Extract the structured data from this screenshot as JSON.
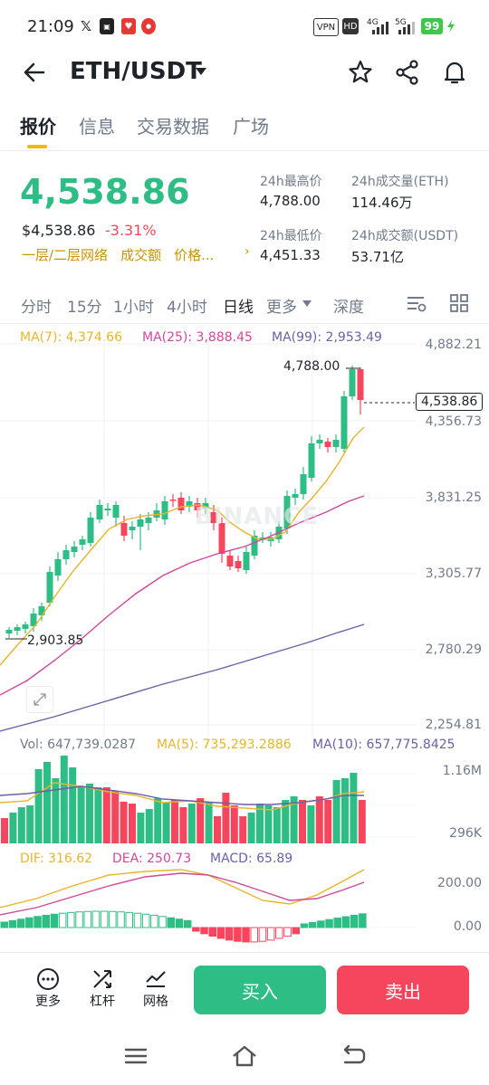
{
  "status": {
    "time": "21:09",
    "vpn": "VPN",
    "hd": "HD",
    "net1": "4G",
    "net2": "5G",
    "battery": "99"
  },
  "header": {
    "title": "ETH/USDT"
  },
  "tabs": [
    "报价",
    "信息",
    "交易数据",
    "广场"
  ],
  "price": {
    "last": "4,538.86",
    "usd": "$4,538.86",
    "change": "-3.31%",
    "links": [
      "一层/二层网络",
      "成交额",
      "价格..."
    ]
  },
  "stats": {
    "high_label": "24h最高价",
    "high": "4,788.00",
    "vol_eth_label": "24h成交量(ETH)",
    "vol_eth": "114.46万",
    "low_label": "24h最低价",
    "low": "4,451.33",
    "vol_usdt_label": "24h成交额(USDT)",
    "vol_usdt": "53.71亿"
  },
  "timeframes": [
    "分时",
    "15分",
    "1小时",
    "4小时",
    "日线",
    "更多",
    "深度"
  ],
  "ma_legend": {
    "ma7": "MA(7): 4,374.66",
    "ma25": "MA(25): 3,888.45",
    "ma99": "MA(99): 2,953.49"
  },
  "price_axis": [
    "4,882.21",
    "4,356.73",
    "3,831.25",
    "3,305.77",
    "2,780.29",
    "2,254.81"
  ],
  "current_price_tag": "4,538.86",
  "high_marker": "4,788.00",
  "low_marker": "2,903.85",
  "watermark": "BINANCE",
  "vol_legend": {
    "vol": "Vol: 647,739.0287",
    "ma5": "MA(5): 735,293.2886",
    "ma10": "MA(10): 657,775.8425"
  },
  "vol_axis": [
    "1.16M",
    "296K"
  ],
  "macd_legend": {
    "dif": "DIF: 316.62",
    "dea": "DEA: 250.73",
    "macd": "MACD: 65.89"
  },
  "macd_axis": [
    "200.00",
    "0.00"
  ],
  "bottom": {
    "more": "更多",
    "leverage": "杠杆",
    "grid": "网格",
    "buy": "买入",
    "sell": "卖出"
  },
  "colors": {
    "up": "#2ebd85",
    "down": "#f6465d",
    "accent": "#f0b90b",
    "ma7": "#e8b52a",
    "ma25": "#d1479b",
    "ma99": "#6d5fa8"
  }
}
